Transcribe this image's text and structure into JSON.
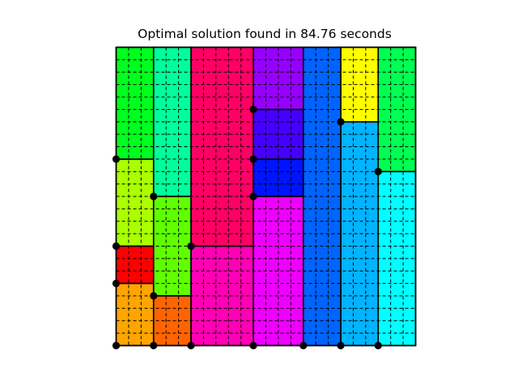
{
  "title": "Optimal solution found in 84.76 seconds",
  "grid": {
    "cols": 24,
    "rows": 24
  },
  "rectangles": [
    {
      "id": "r1",
      "x": 0,
      "y": 15,
      "w": 3,
      "h": 9,
      "color": "#00ff1e"
    },
    {
      "id": "r2",
      "x": 0,
      "y": 8,
      "w": 3,
      "h": 7,
      "color": "#aaff00"
    },
    {
      "id": "r3",
      "x": 0,
      "y": 5,
      "w": 3,
      "h": 3,
      "color": "#ff0000"
    },
    {
      "id": "r4",
      "x": 0,
      "y": 0,
      "w": 3,
      "h": 5,
      "color": "#ffa500"
    },
    {
      "id": "r5",
      "x": 3,
      "y": 12,
      "w": 3,
      "h": 12,
      "color": "#00ff9c"
    },
    {
      "id": "r6",
      "x": 3,
      "y": 4,
      "w": 3,
      "h": 8,
      "color": "#5fff00"
    },
    {
      "id": "r7",
      "x": 3,
      "y": 0,
      "w": 3,
      "h": 4,
      "color": "#ff6400"
    },
    {
      "id": "r8",
      "x": 6,
      "y": 8,
      "w": 5,
      "h": 16,
      "color": "#ff0064"
    },
    {
      "id": "r9",
      "x": 6,
      "y": 0,
      "w": 5,
      "h": 8,
      "color": "#ff00b4"
    },
    {
      "id": "r10",
      "x": 11,
      "y": 19,
      "w": 4,
      "h": 5,
      "color": "#9600ff"
    },
    {
      "id": "r11",
      "x": 11,
      "y": 15,
      "w": 4,
      "h": 4,
      "color": "#4600ff"
    },
    {
      "id": "r12",
      "x": 11,
      "y": 12,
      "w": 4,
      "h": 3,
      "color": "#0014ff"
    },
    {
      "id": "r13",
      "x": 11,
      "y": 0,
      "w": 4,
      "h": 12,
      "color": "#ee00ff"
    },
    {
      "id": "r14",
      "x": 15,
      "y": 0,
      "w": 3,
      "h": 24,
      "color": "#0064ff"
    },
    {
      "id": "r15",
      "x": 18,
      "y": 18,
      "w": 3,
      "h": 6,
      "color": "#ffff00"
    },
    {
      "id": "r16",
      "x": 18,
      "y": 0,
      "w": 3,
      "h": 18,
      "color": "#00b4ff"
    },
    {
      "id": "r17",
      "x": 21,
      "y": 14,
      "w": 3,
      "h": 10,
      "color": "#00ff50"
    },
    {
      "id": "r18",
      "x": 21,
      "y": 0,
      "w": 3,
      "h": 14,
      "color": "#00ffff"
    }
  ],
  "corner_points": [
    [
      0,
      0
    ],
    [
      3,
      0
    ],
    [
      6,
      0
    ],
    [
      11,
      0
    ],
    [
      15,
      0
    ],
    [
      18,
      0
    ],
    [
      21,
      0
    ],
    [
      0,
      5
    ],
    [
      0,
      8
    ],
    [
      0,
      15
    ],
    [
      3,
      4
    ],
    [
      3,
      12
    ],
    [
      6,
      8
    ],
    [
      11,
      12
    ],
    [
      11,
      15
    ],
    [
      11,
      19
    ],
    [
      18,
      18
    ],
    [
      21,
      14
    ]
  ]
}
